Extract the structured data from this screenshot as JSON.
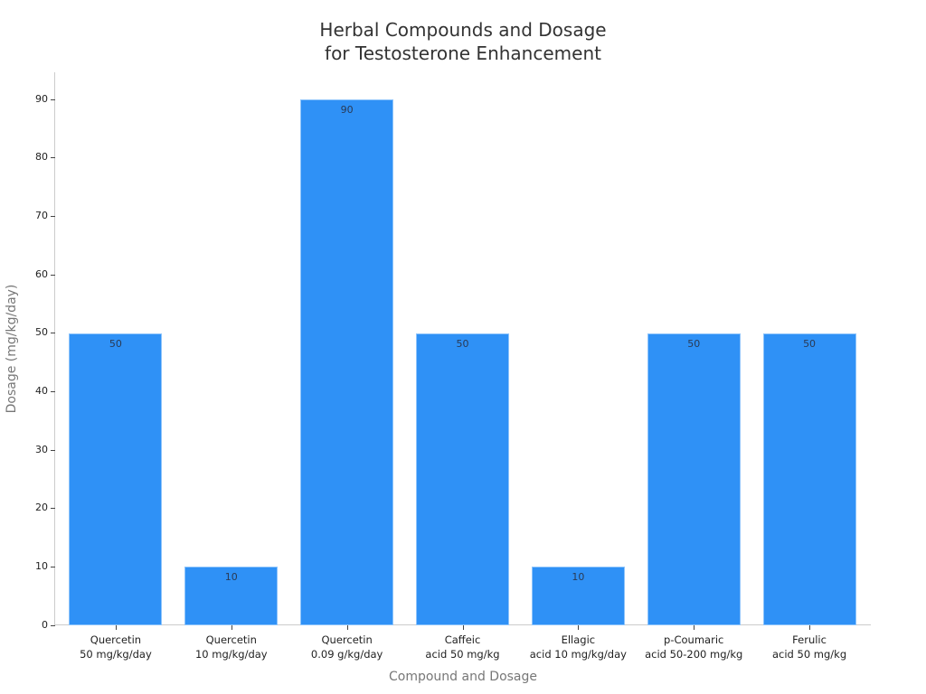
{
  "chart_data": {
    "type": "bar",
    "title": "Herbal Compounds and Dosage for Testosterone Enhancement",
    "title_lines": [
      "Herbal Compounds and Dosage",
      "for Testosterone Enhancement"
    ],
    "xlabel": "Compound and Dosage",
    "ylabel": "Dosage (mg/kg/day)",
    "categories": [
      "Quercetin 50 mg/kg/day",
      "Quercetin 10 mg/kg/day",
      "Quercetin 0.09 g/kg/day",
      "Caffeic acid 50 mg/kg",
      "Ellagic acid 10 mg/kg/day",
      "p-Coumaric acid 50-200 mg/kg",
      "Ferulic acid 50 mg/kg"
    ],
    "category_lines": [
      [
        "Quercetin",
        "50 mg/kg/day"
      ],
      [
        "Quercetin",
        "10 mg/kg/day"
      ],
      [
        "Quercetin",
        "0.09 g/kg/day"
      ],
      [
        "Caffeic",
        "acid 50 mg/kg"
      ],
      [
        "Ellagic",
        "acid 10 mg/kg/day"
      ],
      [
        "p-Coumaric",
        "acid 50-200 mg/kg"
      ],
      [
        "Ferulic",
        "acid 50 mg/kg"
      ]
    ],
    "values": [
      50,
      10,
      90,
      50,
      10,
      50,
      50
    ],
    "data_labels": [
      "50",
      "10",
      "90",
      "50",
      "10",
      "50",
      "50"
    ],
    "ylim": [
      0,
      94.6
    ],
    "yticks": [
      0,
      10,
      20,
      30,
      40,
      50,
      60,
      70,
      80,
      90
    ],
    "grid": false,
    "legend": null,
    "colors": {
      "bar": "#2f91f6",
      "bar_edge": "#8ec4fb",
      "axis": "#cccccc"
    }
  }
}
